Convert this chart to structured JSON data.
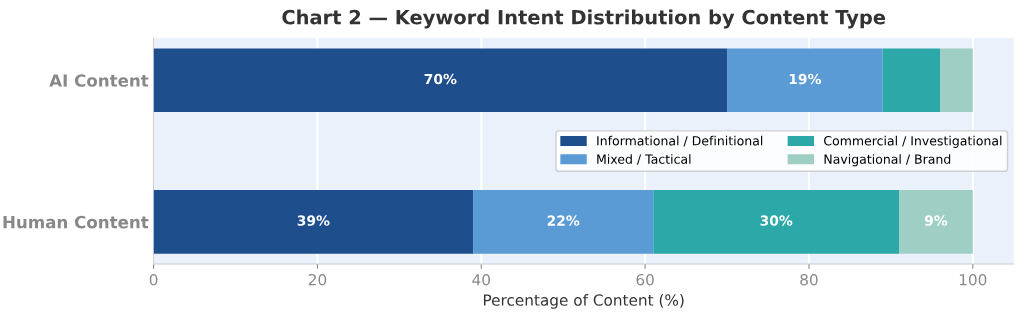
{
  "chart_data": {
    "type": "bar",
    "orientation": "horizontal",
    "stacked": true,
    "title": "Chart 2 — Keyword Intent Distribution by Content Type",
    "xlabel": "Percentage of Content (%)",
    "categories": [
      "AI Content",
      "Human Content"
    ],
    "series": [
      {
        "name": "Informational / Definitional",
        "color": "#1f4e8c",
        "values": [
          70,
          39
        ],
        "value_labels": [
          "70%",
          "39%"
        ]
      },
      {
        "name": "Mixed / Tactical",
        "color": "#5b9bd5",
        "values": [
          19,
          22
        ],
        "value_labels": [
          "19%",
          "22%"
        ]
      },
      {
        "name": "Commercial / Investigational",
        "color": "#2ca8a8",
        "values": [
          7,
          30
        ],
        "value_labels": [
          null,
          "30%"
        ]
      },
      {
        "name": "Navigational / Brand",
        "color": "#9fcec5",
        "values": [
          4,
          9
        ],
        "value_labels": [
          null,
          "9%"
        ]
      }
    ],
    "xlim": [
      0,
      105
    ],
    "xticks": [
      0,
      20,
      40,
      60,
      80,
      100
    ],
    "grid": "x",
    "legend": "right"
  }
}
